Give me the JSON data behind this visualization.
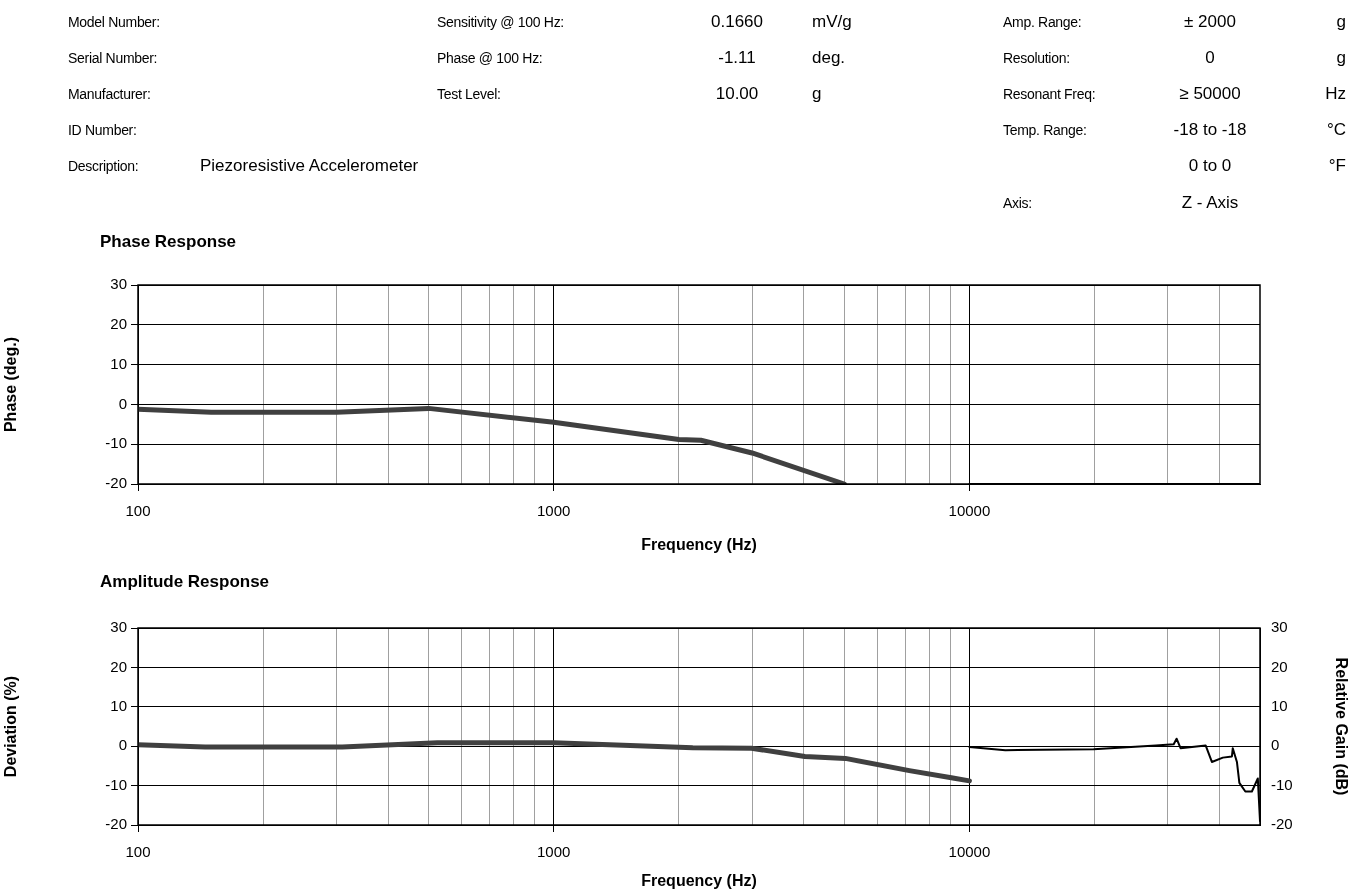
{
  "chart_data": [
    {
      "type": "other",
      "annotations": [
        "Model Number:",
        "Sensitivity @ 100 Hz:",
        "0.1660",
        "mV/g",
        "Amp. Range:",
        "± 2000",
        "g",
        "Serial Number:",
        "Phase @ 100 Hz:",
        "-1.11",
        "deg.",
        "Resolution:",
        "0",
        "g",
        "Manufacturer:",
        "Test Level:",
        "10.00",
        "g",
        "Resonant Freq:",
        "≥ 50000",
        "Hz",
        "ID Number:",
        "Temp. Range:",
        "-18 to -18",
        "°C",
        "Description:",
        "Piezoresistive Accelerometer",
        "0 to 0",
        "°F",
        "Axis:",
        "Z - Axis"
      ]
    },
    {
      "type": "line",
      "title": "Phase Response",
      "xlabel": "Frequency (Hz)",
      "ylabel": "Phase (deg.)",
      "log": "x",
      "grid": true,
      "marker": "none",
      "line_style": "solid",
      "xlim": [
        100,
        50000
      ],
      "xticks": [
        100,
        {
          "value": 200,
          "label": null
        },
        {
          "value": 300,
          "label": null
        },
        {
          "value": 400,
          "label": null
        },
        {
          "value": 500,
          "label": null
        },
        {
          "value": 600,
          "label": null
        },
        {
          "value": 700,
          "label": null
        },
        {
          "value": 800,
          "label": null
        },
        {
          "value": 900,
          "label": null
        },
        1000,
        {
          "value": 2000,
          "label": null
        },
        {
          "value": 3000,
          "label": null
        },
        {
          "value": 4000,
          "label": null
        },
        {
          "value": 5000,
          "label": null
        },
        {
          "value": 6000,
          "label": null
        },
        {
          "value": 7000,
          "label": null
        },
        {
          "value": 8000,
          "label": null
        },
        {
          "value": 9000,
          "label": null
        },
        10000,
        {
          "value": 20000,
          "label": null
        },
        {
          "value": 30000,
          "label": null
        },
        {
          "value": 40000,
          "label": null
        }
      ],
      "ylim": [
        -20,
        30
      ],
      "yticks": [
        -20,
        -10,
        0,
        10,
        20,
        30
      ],
      "series": [
        {
          "color": "#404040",
          "x": [
            100,
            150,
            300,
            500,
            1000,
            2000,
            2260,
            3000,
            5000
          ],
          "values": [
            -1.2,
            -2,
            -2,
            -1,
            -4.5,
            -8.8,
            -9,
            -12.2,
            -20
          ]
        },
        {
          "color": "#000000",
          "x": [
            10000,
            50000
          ],
          "values": [
            -20,
            -20
          ]
        }
      ]
    },
    {
      "type": "line",
      "title": "Amplitude Response",
      "xlabel": "Frequency (Hz)",
      "ylabel": "Deviation (%)",
      "y2label": "Relative Gain (dB)",
      "log": "x",
      "grid": true,
      "marker": "none",
      "line_style": "solid",
      "xlim": [
        100,
        50000
      ],
      "xticks": [
        100,
        {
          "value": 200,
          "label": null
        },
        {
          "value": 300,
          "label": null
        },
        {
          "value": 400,
          "label": null
        },
        {
          "value": 500,
          "label": null
        },
        {
          "value": 600,
          "label": null
        },
        {
          "value": 700,
          "label": null
        },
        {
          "value": 800,
          "label": null
        },
        {
          "value": 900,
          "label": null
        },
        1000,
        {
          "value": 2000,
          "label": null
        },
        {
          "value": 3000,
          "label": null
        },
        {
          "value": 4000,
          "label": null
        },
        {
          "value": 5000,
          "label": null
        },
        {
          "value": 6000,
          "label": null
        },
        {
          "value": 7000,
          "label": null
        },
        {
          "value": 8000,
          "label": null
        },
        {
          "value": 9000,
          "label": null
        },
        10000,
        {
          "value": 20000,
          "label": null
        },
        {
          "value": 30000,
          "label": null
        },
        {
          "value": 40000,
          "label": null
        }
      ],
      "ylim": [
        -20,
        30
      ],
      "yticks": [
        -20,
        -10,
        0,
        10,
        20,
        30
      ],
      "y2lim": [
        -20,
        30
      ],
      "y2ticks": [
        -20,
        -10,
        0,
        10,
        20,
        30
      ],
      "series": [
        {
          "color": "#404040",
          "x": [
            100,
            145,
            310,
            525,
            1000,
            2160,
            2990,
            4020,
            5030,
            7170,
            9050,
            10000
          ],
          "values": [
            0.4,
            -0.2,
            -0.2,
            0.9,
            0.9,
            -0.4,
            -0.5,
            -2.6,
            -3.1,
            -6.2,
            -8,
            -8.8
          ]
        },
        {
          "color": "#000000",
          "axis": "y2",
          "x": [
            10000,
            12200,
            19900,
            28100,
            31000,
            31500,
            32200,
            37000,
            38300,
            40700,
            42800,
            43000,
            44000,
            44600,
            46100,
            47800,
            49400,
            50000
          ],
          "values": [
            -0.2,
            -1,
            -0.8,
            0.2,
            0.5,
            1.9,
            -0.5,
            0.2,
            -4,
            -2.9,
            -2.6,
            -0.5,
            -4,
            -9.3,
            -11.5,
            -11.5,
            -8.2,
            -19
          ]
        }
      ]
    }
  ]
}
